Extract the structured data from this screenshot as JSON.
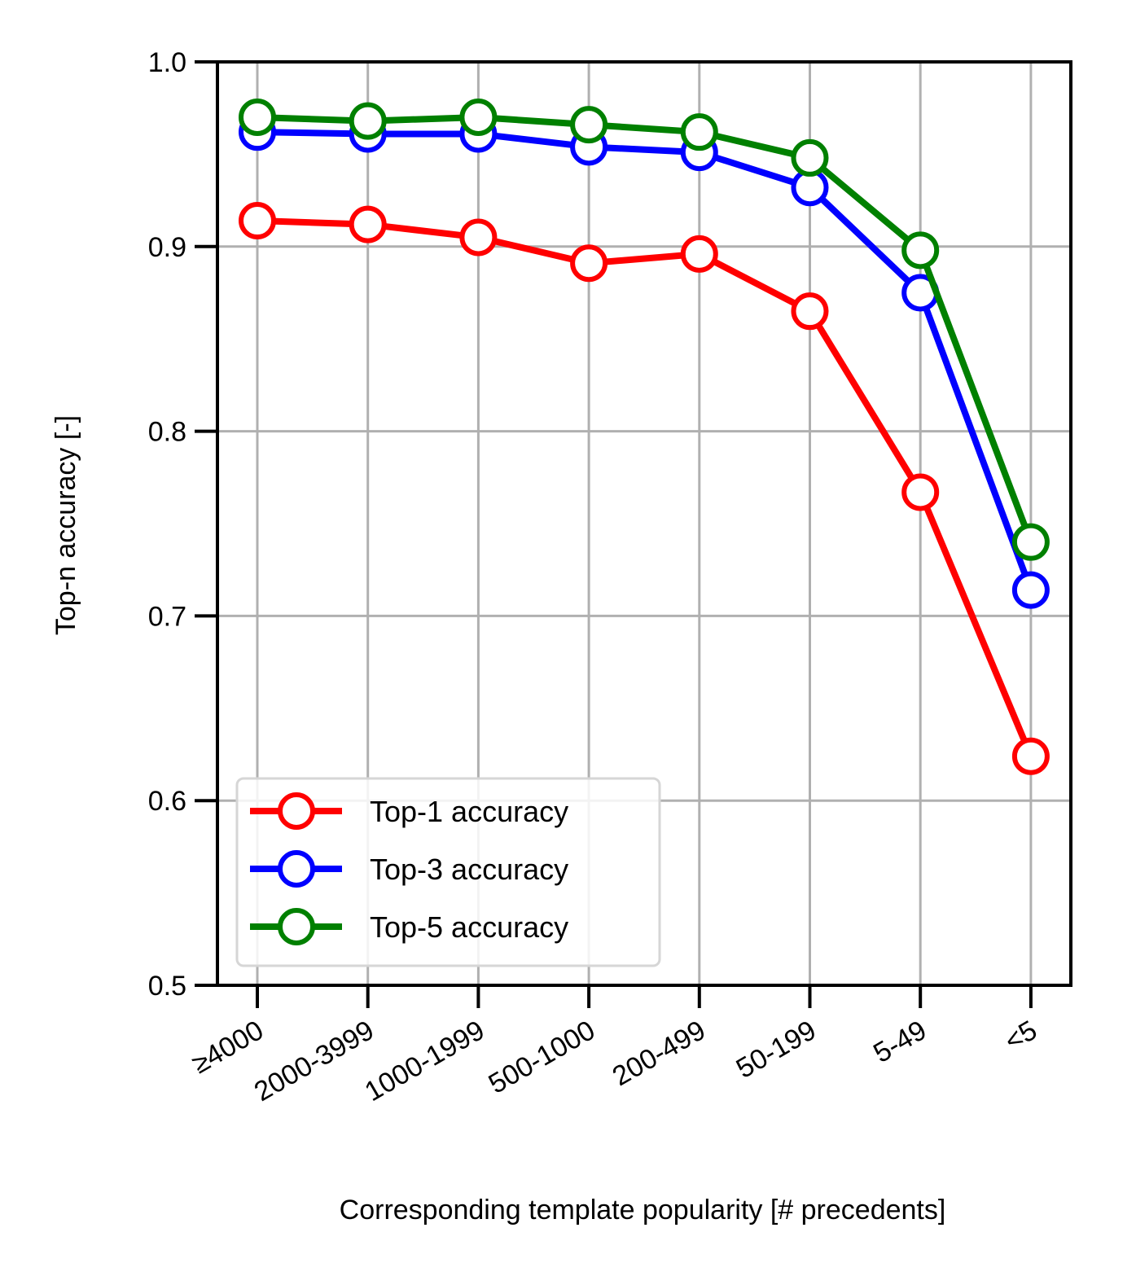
{
  "chart_data": {
    "type": "line",
    "categories": [
      "≥4000",
      "2000-3999",
      "1000-1999",
      "500-1000",
      "200-499",
      "50-199",
      "5-49",
      "<5"
    ],
    "xlabel": "Corresponding template popularity [# precedents]",
    "ylabel": "Top-n accuracy [-]",
    "ylim": [
      0.5,
      1.0
    ],
    "yticks": [
      "0.5",
      "0.6",
      "0.7",
      "0.8",
      "0.9",
      "1.0"
    ],
    "grid": true,
    "legend_position": "lower-left",
    "series": [
      {
        "name": "Top-1 accuracy",
        "color": "#ff0000",
        "values": [
          0.914,
          0.912,
          0.905,
          0.891,
          0.896,
          0.865,
          0.767,
          0.624
        ]
      },
      {
        "name": "Top-3 accuracy",
        "color": "#0000ff",
        "values": [
          0.962,
          0.961,
          0.961,
          0.954,
          0.951,
          0.932,
          0.875,
          0.714
        ]
      },
      {
        "name": "Top-5 accuracy",
        "color": "#008000",
        "values": [
          0.97,
          0.968,
          0.97,
          0.966,
          0.962,
          0.948,
          0.898,
          0.74
        ]
      }
    ]
  }
}
